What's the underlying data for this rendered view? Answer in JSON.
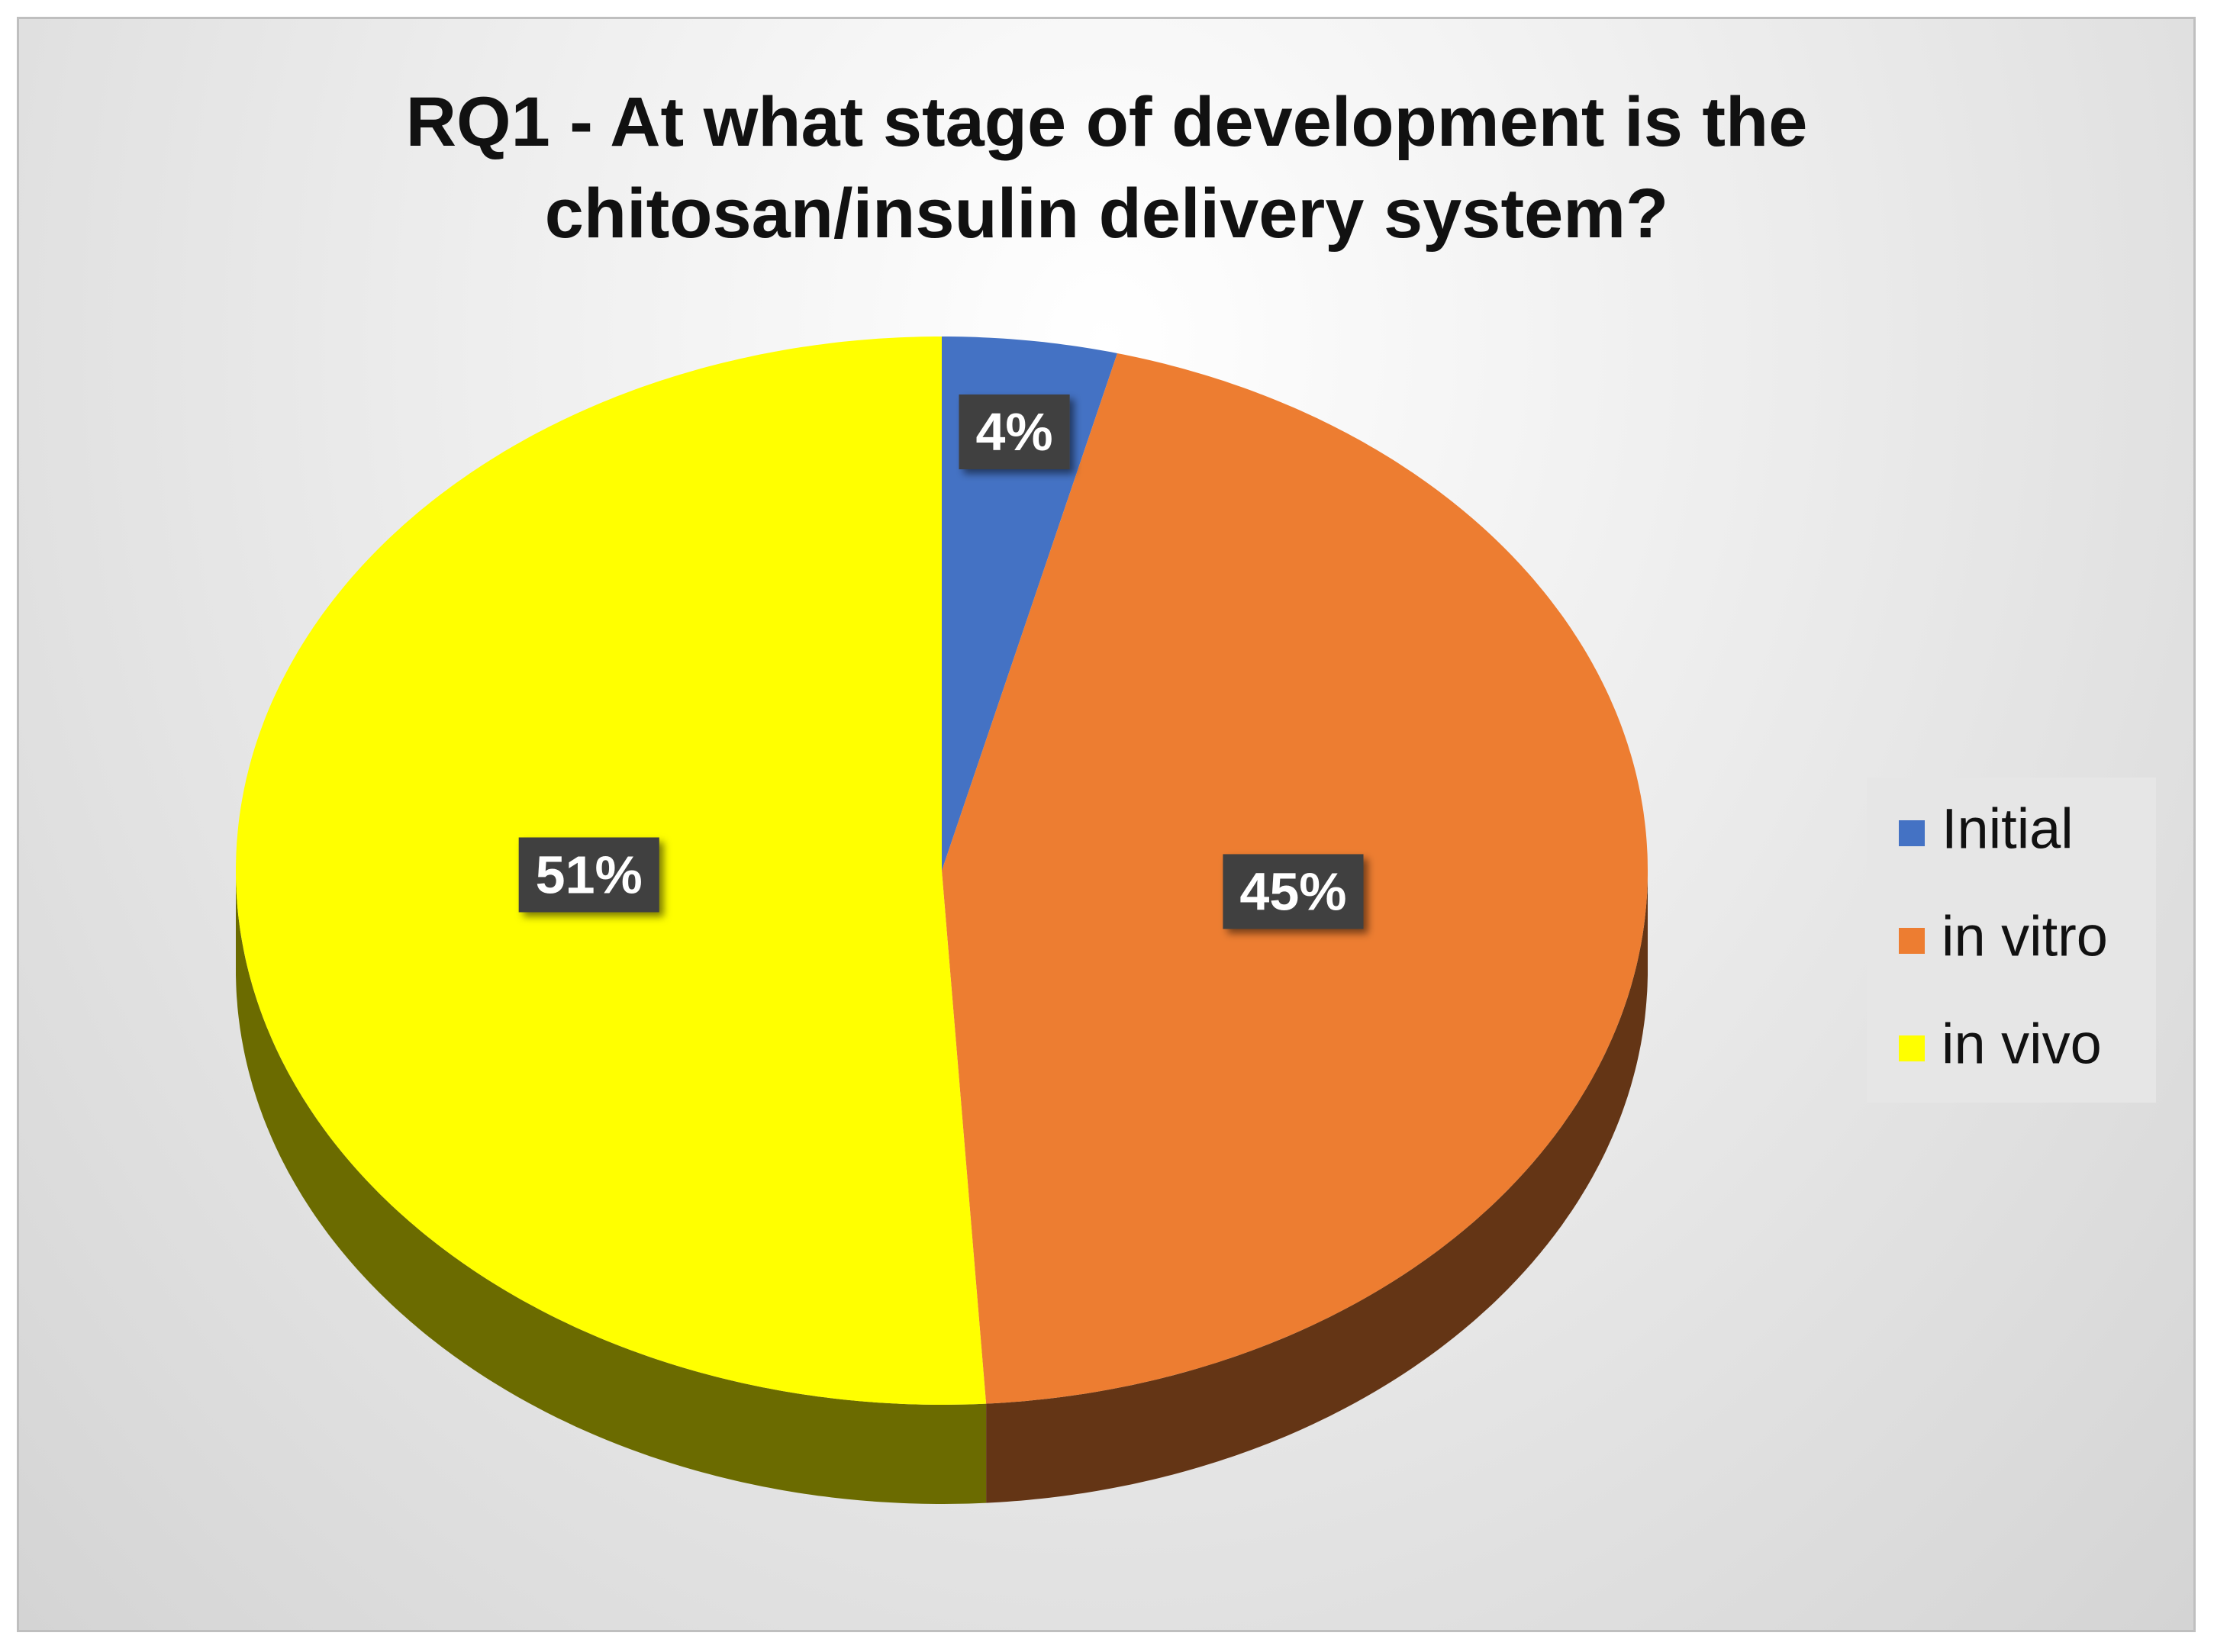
{
  "chart_data": {
    "type": "pie",
    "title": "RQ1 - At what stage of development is the chitosan/insulin delivery system?",
    "categories": [
      "Initial",
      "in vitro",
      "in vivo"
    ],
    "values": [
      4,
      45,
      51
    ],
    "value_labels": [
      "4%",
      "45%",
      "51%"
    ],
    "colors": [
      "#4472c4",
      "#ed7d31",
      "#ffff00"
    ],
    "legend": "right"
  }
}
